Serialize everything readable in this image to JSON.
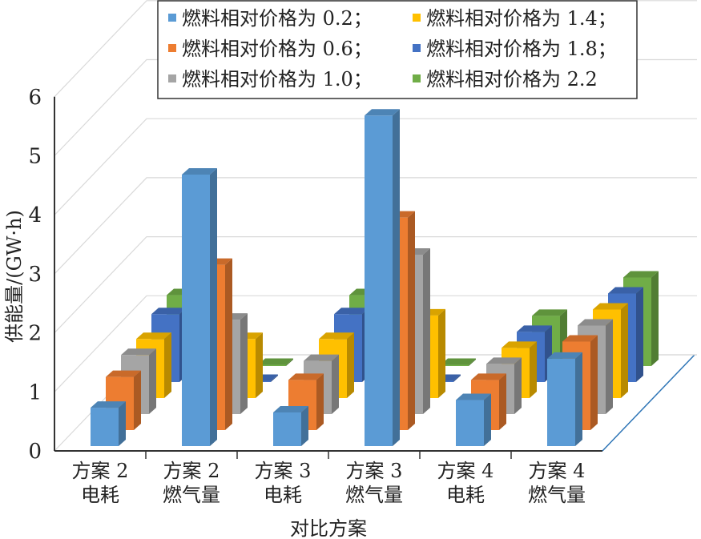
{
  "chart_data": {
    "type": "bar3d",
    "title": "",
    "xlabel": "对比方案",
    "ylabel": "供能量/(GW·h)",
    "ylim": [
      0,
      6
    ],
    "yticks": [
      "0",
      "1",
      "2",
      "3",
      "4",
      "5",
      "6"
    ],
    "grid": true,
    "legend_position": "top",
    "categories": [
      [
        "方案 2",
        "电耗"
      ],
      [
        "方案 2",
        "燃气量"
      ],
      [
        "方案 3",
        "电耗"
      ],
      [
        "方案 3",
        "燃气量"
      ],
      [
        "方案 4",
        "电耗"
      ],
      [
        "方案 4",
        "燃气量"
      ]
    ],
    "series": [
      {
        "name": "燃料相对价格为 0.2；",
        "color": "#5b9bd5",
        "values": [
          0.65,
          4.6,
          0.57,
          5.6,
          0.78,
          1.48
        ]
      },
      {
        "name": "燃料相对价格为 0.6；",
        "color": "#ed7d31",
        "values": [
          0.9,
          2.8,
          0.85,
          3.6,
          0.85,
          1.5
        ]
      },
      {
        "name": "燃料相对价格为 1.0；",
        "color": "#a5a5a5",
        "values": [
          1.0,
          1.6,
          0.9,
          2.7,
          0.85,
          1.5
        ]
      },
      {
        "name": "燃料相对价格为 1.4；",
        "color": "#ffc000",
        "values": [
          1.0,
          1.0,
          1.0,
          1.4,
          0.85,
          1.5
        ]
      },
      {
        "name": "燃料相对价格为 1.8；",
        "color": "#4472c4",
        "values": [
          1.15,
          0.02,
          1.15,
          0.02,
          0.85,
          1.5
        ]
      },
      {
        "name": "燃料相对价格为 2.2",
        "color": "#70ad47",
        "values": [
          1.2,
          0.02,
          1.2,
          0.02,
          0.85,
          1.5
        ]
      }
    ]
  }
}
